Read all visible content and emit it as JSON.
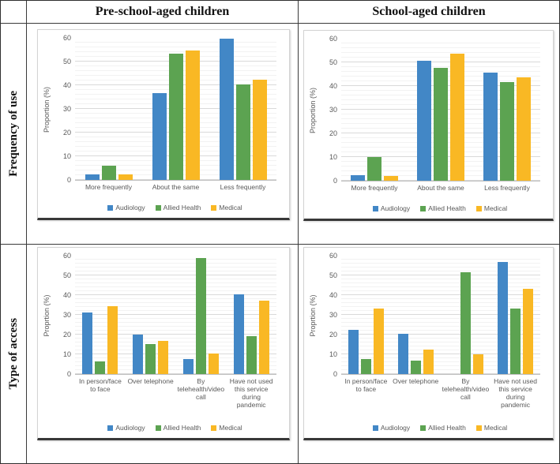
{
  "table": {
    "col_headers": [
      "Pre-school-aged children",
      "School-aged children"
    ],
    "row_headers": [
      "Frequency of use",
      "Type of access"
    ]
  },
  "legend_labels": [
    "Audiology",
    "Allied Health",
    "Medical"
  ],
  "colors": {
    "audiology": "#4287C6",
    "allied_health": "#5CA351",
    "medical": "#F9B824"
  },
  "chart_data": [
    {
      "id": "pre-school-frequency",
      "type": "bar",
      "row": "top",
      "title": "",
      "ylabel": "Proportion (%)",
      "ylim": [
        0,
        60
      ],
      "yticks": [
        0,
        10,
        20,
        30,
        40,
        50,
        60
      ],
      "minor_unit": 2,
      "grid": true,
      "legend_position": "bottom",
      "categories": [
        "More frequently",
        "About the same",
        "Less frequently"
      ],
      "series": [
        {
          "name": "Audiology",
          "color": "#4287C6",
          "values": [
            2.5,
            37,
            60
          ]
        },
        {
          "name": "Allied Health",
          "color": "#5CA351",
          "values": [
            6,
            53.5,
            40.5
          ]
        },
        {
          "name": "Medical",
          "color": "#F9B824",
          "values": [
            2.5,
            55,
            42.5
          ]
        }
      ]
    },
    {
      "id": "school-frequency",
      "type": "bar",
      "row": "top",
      "title": "",
      "ylabel": "Proportion (%)",
      "ylim": [
        0,
        60
      ],
      "yticks": [
        0,
        10,
        20,
        30,
        40,
        50,
        60
      ],
      "minor_unit": 2,
      "grid": true,
      "legend_position": "bottom",
      "categories": [
        "More frequently",
        "About the same",
        "Less frequently"
      ],
      "series": [
        {
          "name": "Audiology",
          "color": "#4287C6",
          "values": [
            2.5,
            51,
            46
          ]
        },
        {
          "name": "Allied Health",
          "color": "#5CA351",
          "values": [
            10,
            48,
            42
          ]
        },
        {
          "name": "Medical",
          "color": "#F9B824",
          "values": [
            2,
            54,
            44
          ]
        }
      ]
    },
    {
      "id": "pre-school-access",
      "type": "bar",
      "row": "bottom",
      "title": "",
      "ylabel": "Proprtion (%)",
      "ylim": [
        0,
        60
      ],
      "yticks": [
        0,
        10,
        20,
        30,
        40,
        50,
        60
      ],
      "minor_unit": 2,
      "grid": true,
      "legend_position": "bottom",
      "categories": [
        "In person/face to face",
        "Over telephone",
        "By telehealth/video call",
        "Have not used this service during pandemic"
      ],
      "series": [
        {
          "name": "Audiology",
          "color": "#4287C6",
          "values": [
            31.5,
            20,
            7.5,
            40.5
          ]
        },
        {
          "name": "Allied Health",
          "color": "#5CA351",
          "values": [
            6.5,
            15.5,
            59,
            19.5
          ]
        },
        {
          "name": "Medical",
          "color": "#F9B824",
          "values": [
            34.5,
            17,
            10.5,
            37.5
          ]
        }
      ]
    },
    {
      "id": "school-access",
      "type": "bar",
      "row": "bottom",
      "title": "",
      "ylabel": "Proprtion (%)",
      "ylim": [
        0,
        60
      ],
      "yticks": [
        0,
        10,
        20,
        30,
        40,
        50,
        60
      ],
      "minor_unit": 2,
      "grid": true,
      "legend_position": "bottom",
      "categories": [
        "In person/face to face",
        "Over telephone",
        "By telehealth/video call",
        "Have not used this service during pandemic"
      ],
      "series": [
        {
          "name": "Audiology",
          "color": "#4287C6",
          "values": [
            22.5,
            20.5,
            0,
            57
          ]
        },
        {
          "name": "Allied Health",
          "color": "#5CA351",
          "values": [
            7.5,
            7,
            52,
            33.5
          ]
        },
        {
          "name": "Medical",
          "color": "#F9B824",
          "values": [
            33.5,
            12.5,
            10,
            43.5
          ]
        }
      ]
    }
  ]
}
